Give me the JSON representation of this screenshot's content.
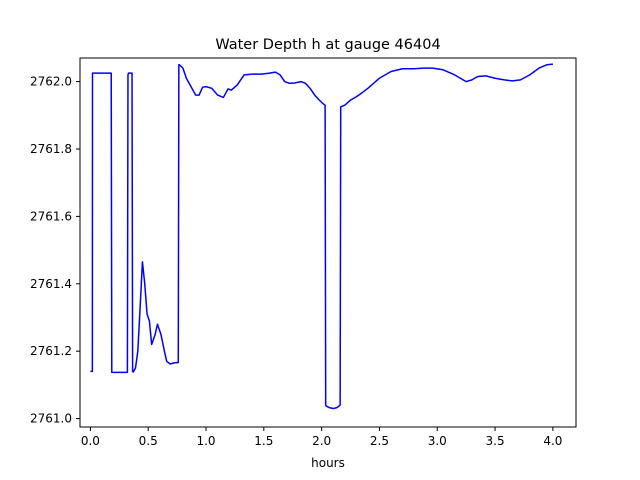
{
  "chart_data": {
    "type": "line",
    "title": "Water Depth h at gauge 46404",
    "xlabel": "hours",
    "ylabel": "",
    "xlim": [
      -0.09,
      4.2
    ],
    "ylim": [
      2760.975,
      2762.07
    ],
    "grid": false,
    "x_ticks": [
      0.0,
      0.5,
      1.0,
      1.5,
      2.0,
      2.5,
      3.0,
      3.5,
      4.0
    ],
    "x_tick_labels": [
      "0.0",
      "0.5",
      "1.0",
      "1.5",
      "2.0",
      "2.5",
      "3.0",
      "3.5",
      "4.0"
    ],
    "y_ticks": [
      2761.0,
      2761.2,
      2761.4,
      2761.6,
      2761.8,
      2762.0
    ],
    "y_tick_labels": [
      "2761.0",
      "2761.2",
      "2761.4",
      "2761.6",
      "2761.8",
      "2762.0"
    ],
    "series": [
      {
        "color": "#0000ff",
        "x": [
          0.0,
          0.017,
          0.018,
          0.03,
          0.18,
          0.185,
          0.2,
          0.32,
          0.325,
          0.33,
          0.36,
          0.365,
          0.37,
          0.39,
          0.41,
          0.43,
          0.45,
          0.47,
          0.49,
          0.51,
          0.53,
          0.56,
          0.58,
          0.61,
          0.64,
          0.66,
          0.69,
          0.72,
          0.74,
          0.76,
          0.765,
          0.77,
          0.8,
          0.83,
          0.87,
          0.91,
          0.94,
          0.97,
          1.0,
          1.05,
          1.1,
          1.15,
          1.19,
          1.22,
          1.27,
          1.33,
          1.4,
          1.48,
          1.55,
          1.6,
          1.64,
          1.68,
          1.72,
          1.77,
          1.82,
          1.86,
          1.9,
          1.94,
          1.98,
          2.01,
          2.03,
          2.035,
          2.04,
          2.07,
          2.1,
          2.13,
          2.15,
          2.16,
          2.165,
          2.2,
          2.25,
          2.3,
          2.35,
          2.4,
          2.5,
          2.6,
          2.7,
          2.8,
          2.88,
          2.96,
          3.05,
          3.15,
          3.25,
          3.3,
          3.35,
          3.42,
          3.5,
          3.58,
          3.65,
          3.72,
          3.8,
          3.88,
          3.95,
          4.0
        ],
        "y": [
          2761.14,
          2761.14,
          2762.025,
          2762.025,
          2762.025,
          2761.137,
          2761.137,
          2761.137,
          2762.02,
          2762.025,
          2762.025,
          2761.14,
          2761.138,
          2761.15,
          2761.2,
          2761.33,
          2761.465,
          2761.4,
          2761.31,
          2761.29,
          2761.22,
          2761.25,
          2761.28,
          2761.25,
          2761.2,
          2761.17,
          2761.162,
          2761.165,
          2761.166,
          2761.166,
          2762.05,
          2762.05,
          2762.04,
          2762.01,
          2761.985,
          2761.96,
          2761.96,
          2761.983,
          2761.985,
          2761.98,
          2761.96,
          2761.953,
          2761.978,
          2761.975,
          2761.99,
          2762.02,
          2762.022,
          2762.022,
          2762.025,
          2762.028,
          2762.02,
          2762.0,
          2761.995,
          2761.996,
          2762.0,
          2761.995,
          2761.98,
          2761.96,
          2761.945,
          2761.935,
          2761.93,
          2761.04,
          2761.037,
          2761.032,
          2761.03,
          2761.032,
          2761.037,
          2761.04,
          2761.925,
          2761.93,
          2761.945,
          2761.955,
          2761.967,
          2761.98,
          2762.01,
          2762.03,
          2762.038,
          2762.038,
          2762.04,
          2762.04,
          2762.035,
          2762.02,
          2762.0,
          2762.005,
          2762.015,
          2762.017,
          2762.01,
          2762.005,
          2762.002,
          2762.005,
          2762.02,
          2762.04,
          2762.05,
          2762.052
        ]
      }
    ]
  }
}
